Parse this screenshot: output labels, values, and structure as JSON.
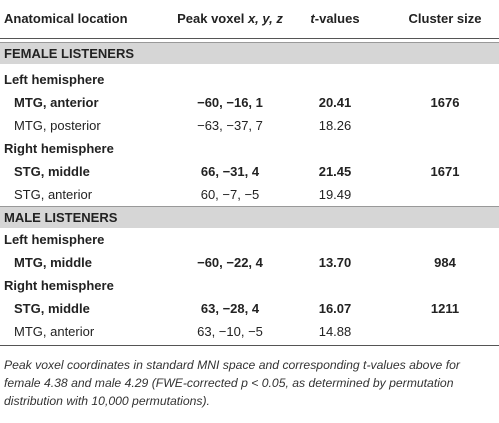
{
  "header": {
    "location": "Anatomical location",
    "peak": {
      "text": "Peak voxel",
      "italic": "x, y, z"
    },
    "tvalues": {
      "italic": "t",
      "text": "-values"
    },
    "cluster": "Cluster size"
  },
  "sections": [
    {
      "title": "FEMALE LISTENERS",
      "groups": [
        {
          "title": "Left hemisphere",
          "rows": [
            {
              "bold": true,
              "cells": [
                "MTG, anterior",
                "−60, −16, 1",
                "20.41",
                "1676"
              ]
            },
            {
              "bold": false,
              "cells": [
                "MTG, posterior",
                "−63, −37, 7",
                "18.26"
              ]
            }
          ]
        },
        {
          "title": "Right hemisphere",
          "rows": [
            {
              "bold": true,
              "cells": [
                "STG, middle",
                "66, −31, 4",
                "21.45",
                "1671"
              ]
            },
            {
              "bold": false,
              "cells": [
                "STG, anterior",
                "60, −7, −5",
                "19.49"
              ]
            }
          ]
        }
      ]
    },
    {
      "title": "MALE LISTENERS",
      "groups": [
        {
          "title": "Left hemisphere",
          "rows": [
            {
              "bold": true,
              "cells": [
                "MTG, middle",
                "−60, −22, 4",
                "13.70",
                "984"
              ]
            }
          ]
        },
        {
          "title": "Right hemisphere",
          "rows": [
            {
              "bold": true,
              "cells": [
                "STG, middle",
                "63, −28, 4",
                "16.07",
                "1211"
              ]
            },
            {
              "bold": false,
              "cells": [
                "MTG, anterior",
                "63, −10, −5",
                "14.88"
              ]
            }
          ]
        }
      ]
    }
  ],
  "footnote": "Peak voxel coordinates in standard MNI space and corresponding t-values above for female 4.38 and male 4.29 (FWE-corrected p < 0.05, as determined by permutation distribution with 10,000 permutations)."
}
